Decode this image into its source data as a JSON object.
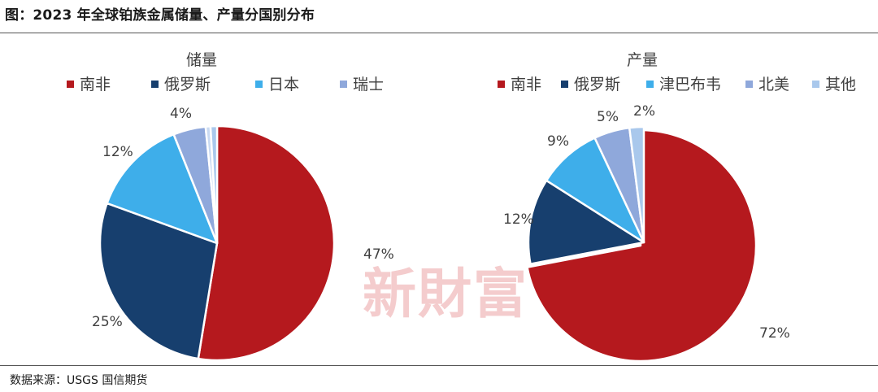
{
  "figure": {
    "title": "图：2023 年全球铂族金属储量、产量分国别分布",
    "source": "数据来源：USGS 国信期货",
    "watermark": "新財富"
  },
  "chart_data": [
    {
      "type": "pie",
      "title": "储量",
      "legend_position": "top",
      "slices": [
        {
          "label": "南非",
          "value": 47,
          "color": "#b5191e",
          "data_label": "47%"
        },
        {
          "label": "俄罗斯",
          "value": 25,
          "color": "#173f6e",
          "data_label": "25%"
        },
        {
          "label": "日本",
          "value": 12,
          "color": "#3eaeea",
          "data_label": "12%"
        },
        {
          "label": "瑞士",
          "value": 4,
          "color": "#8fa8db",
          "data_label": "4%"
        },
        {
          "label": "",
          "value": 0.6,
          "color": "#c9daf2",
          "data_label": ""
        },
        {
          "label": "",
          "value": 0.8,
          "color": "#a9c8ec",
          "data_label": ""
        }
      ]
    },
    {
      "type": "pie",
      "title": "产量",
      "legend_position": "top",
      "slices": [
        {
          "label": "南非",
          "value": 72,
          "color": "#b5191e",
          "data_label": "72%"
        },
        {
          "label": "俄罗斯",
          "value": 12,
          "color": "#173f6e",
          "data_label": "12%"
        },
        {
          "label": "津巴布韦",
          "value": 9,
          "color": "#3eaeea",
          "data_label": "9%"
        },
        {
          "label": "北美",
          "value": 5,
          "color": "#8fa8db",
          "data_label": "5%"
        },
        {
          "label": "其他",
          "value": 2,
          "color": "#a9c8ec",
          "data_label": "2%"
        }
      ]
    }
  ]
}
